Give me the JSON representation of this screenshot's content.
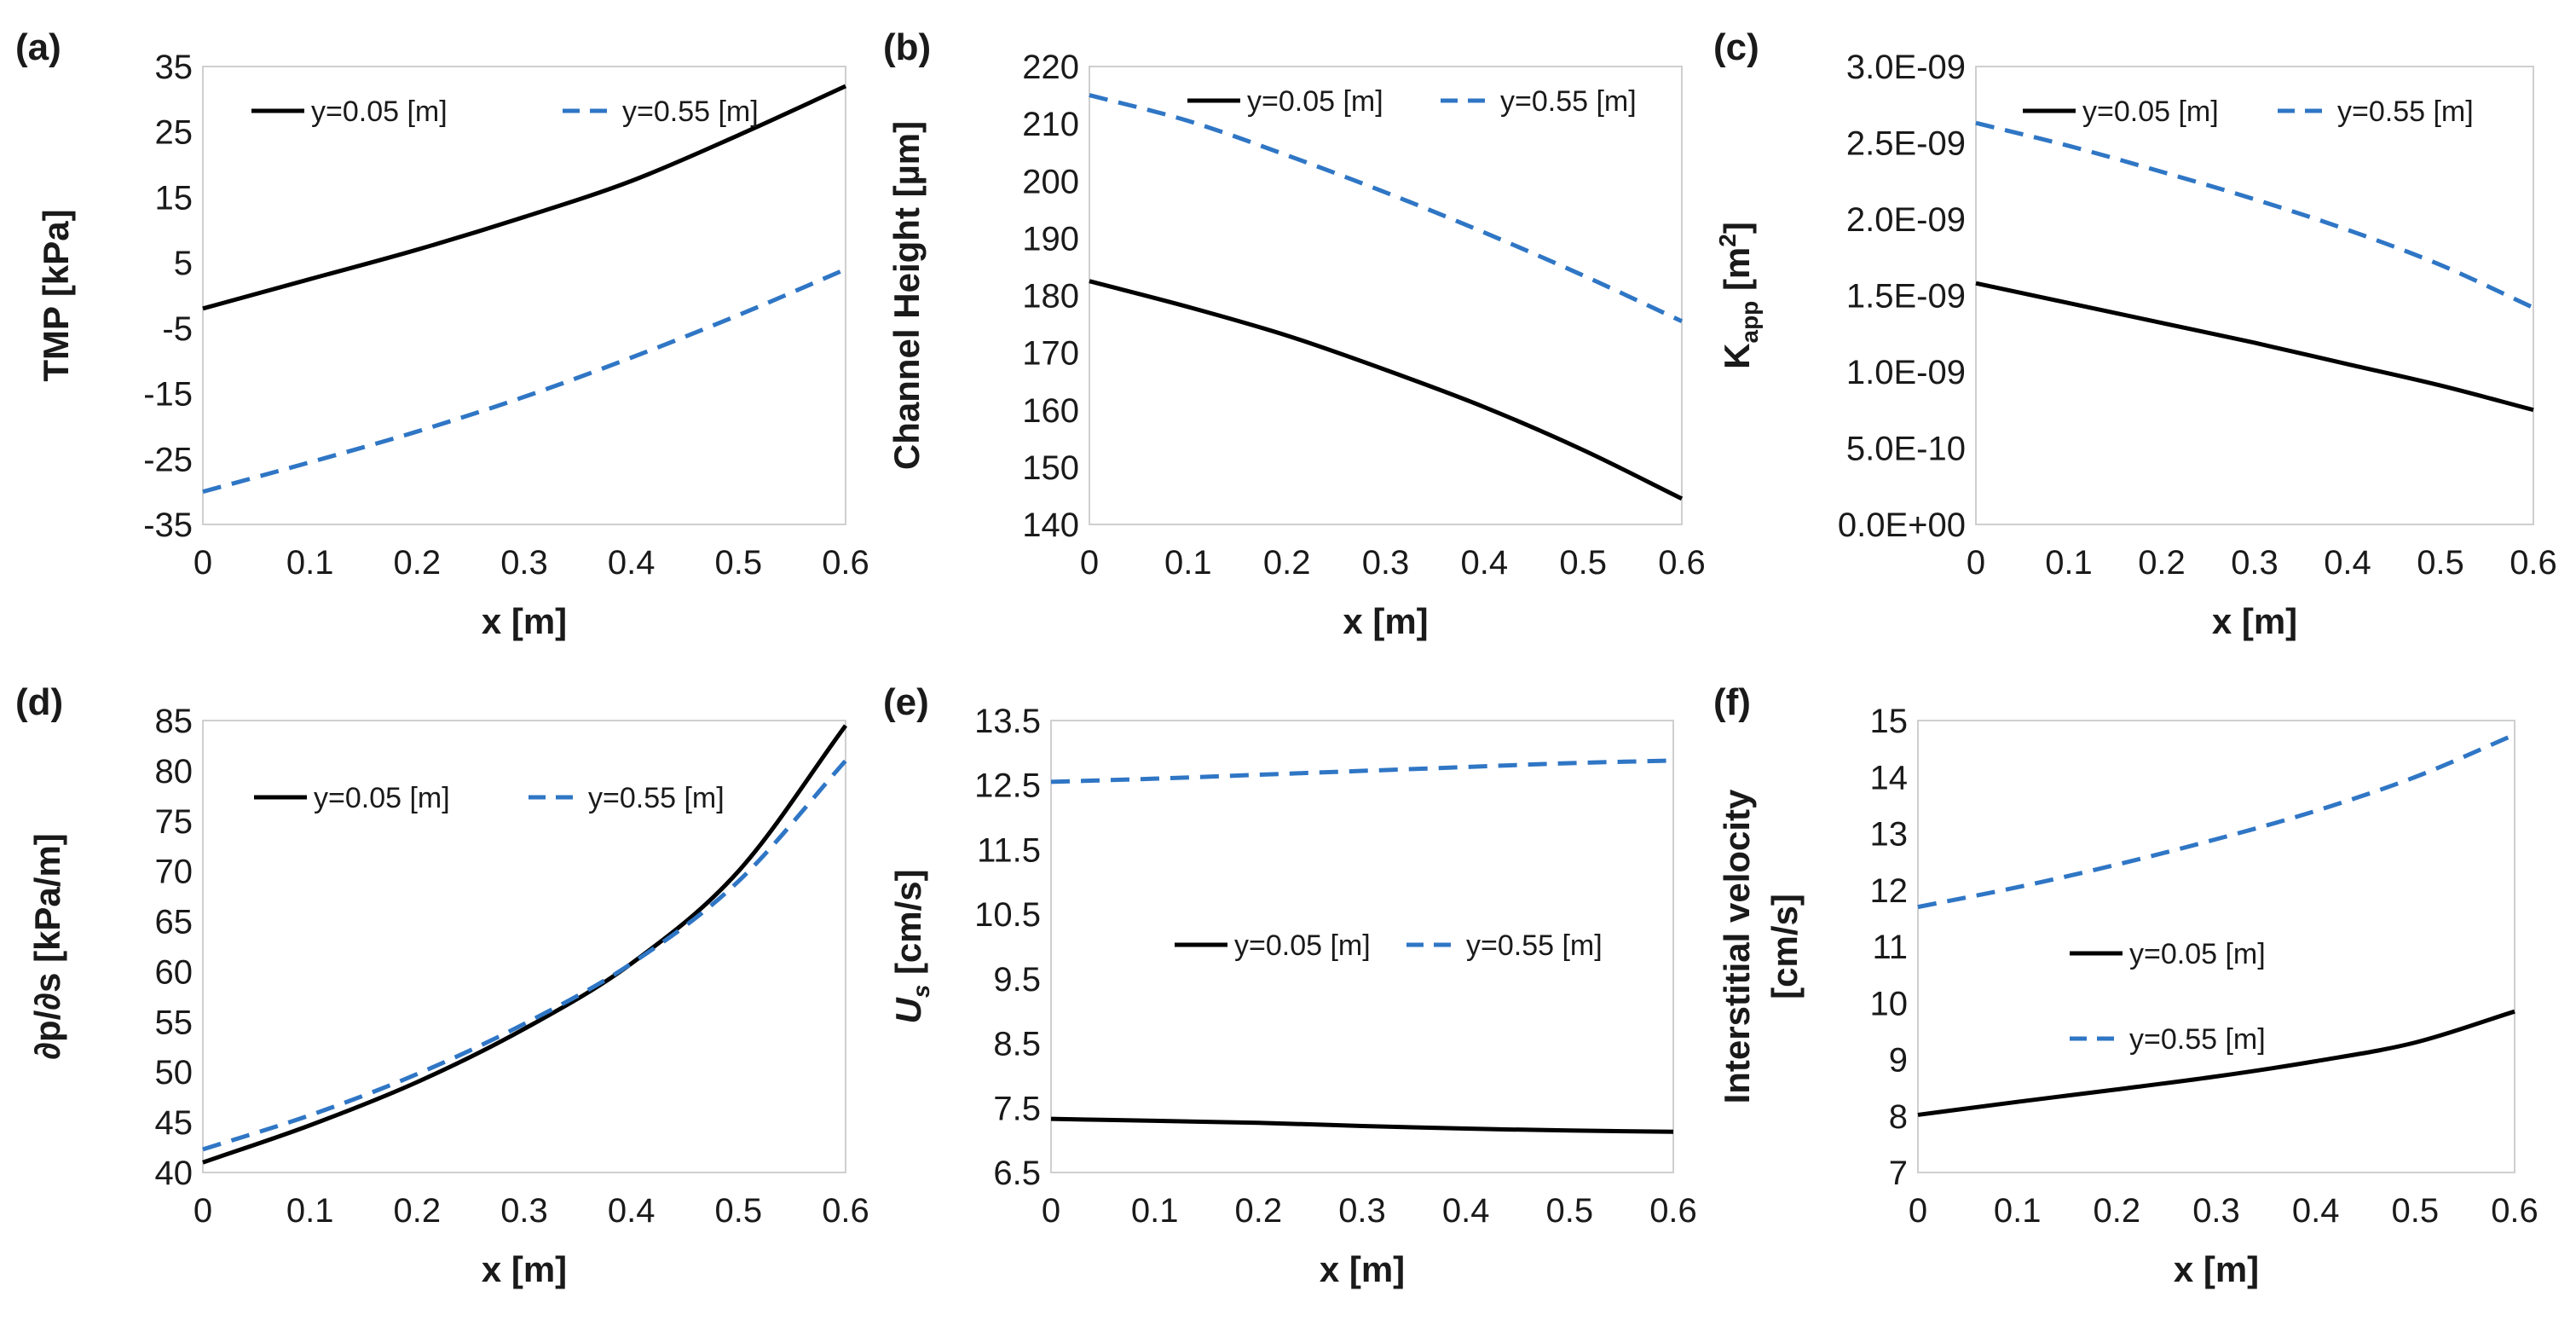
{
  "colors": {
    "solid": "#000000",
    "dashed": "#2F76C5",
    "frame": "#cfcfcf",
    "text": "#1a1a1a"
  },
  "chart_data": [
    {
      "id": "a",
      "type": "line",
      "panel_label": "(a)",
      "xlabel": "x [m]",
      "ylabel": "TMP [kPa]",
      "xlim": [
        0,
        0.6
      ],
      "ylim": [
        -35,
        35
      ],
      "xticks": [
        0,
        0.1,
        0.2,
        0.3,
        0.4,
        0.5,
        0.6
      ],
      "xtick_labels": [
        "0",
        "0.1",
        "0.2",
        "0.3",
        "0.4",
        "0.5",
        "0.6"
      ],
      "yticks": [
        -35,
        -25,
        -15,
        -5,
        5,
        15,
        25,
        35
      ],
      "ytick_labels": [
        "-35",
        "-25",
        "-15",
        "-5",
        "5",
        "15",
        "25",
        "35"
      ],
      "legend_position": "top",
      "series": [
        {
          "name": "y=0.05 [m]",
          "style": "solid",
          "x": [
            0,
            0.1,
            0.2,
            0.3,
            0.4,
            0.5,
            0.6
          ],
          "y": [
            -2,
            2.5,
            7,
            12,
            17.5,
            24.5,
            32
          ]
        },
        {
          "name": "y=0.55 [m]",
          "style": "dashed",
          "x": [
            0,
            0.1,
            0.2,
            0.3,
            0.4,
            0.5,
            0.6
          ],
          "y": [
            -30,
            -25.5,
            -20.8,
            -15.5,
            -9.5,
            -3,
            4
          ]
        }
      ]
    },
    {
      "id": "b",
      "type": "line",
      "panel_label": "(b)",
      "xlabel": "x [m]",
      "ylabel": "Channel Height [µm]",
      "xlim": [
        0,
        0.6
      ],
      "ylim": [
        140,
        220
      ],
      "xticks": [
        0,
        0.1,
        0.2,
        0.3,
        0.4,
        0.5,
        0.6
      ],
      "xtick_labels": [
        "0",
        "0.1",
        "0.2",
        "0.3",
        "0.4",
        "0.5",
        "0.6"
      ],
      "yticks": [
        140,
        150,
        160,
        170,
        180,
        190,
        200,
        210,
        220
      ],
      "ytick_labels": [
        "140",
        "150",
        "160",
        "170",
        "180",
        "190",
        "200",
        "210",
        "220"
      ],
      "legend_position": "top",
      "series": [
        {
          "name": "y=0.05 [m]",
          "style": "solid",
          "x": [
            0,
            0.1,
            0.2,
            0.3,
            0.4,
            0.5,
            0.6
          ],
          "y": [
            182.5,
            178,
            173,
            167,
            160.5,
            153,
            144.5
          ]
        },
        {
          "name": "y=0.55 [m]",
          "style": "dashed",
          "x": [
            0,
            0.1,
            0.2,
            0.3,
            0.4,
            0.5,
            0.6
          ],
          "y": [
            215,
            210.5,
            204.5,
            198,
            191,
            183.5,
            175.5
          ]
        }
      ]
    },
    {
      "id": "c",
      "type": "line",
      "panel_label": "(c)",
      "xlabel": "x [m]",
      "ylabel_main": "K",
      "ylabel_sub": "app",
      "ylabel_unit": " [m",
      "ylabel_sup": "2",
      "ylabel_end": "]",
      "xlim": [
        0,
        0.6
      ],
      "ylim": [
        0,
        3e-09
      ],
      "xticks": [
        0,
        0.1,
        0.2,
        0.3,
        0.4,
        0.5,
        0.6
      ],
      "xtick_labels": [
        "0",
        "0.1",
        "0.2",
        "0.3",
        "0.4",
        "0.5",
        "0.6"
      ],
      "yticks": [
        0,
        5e-10,
        1e-09,
        1.5e-09,
        2e-09,
        2.5e-09,
        3e-09
      ],
      "ytick_labels": [
        "0.0E+00",
        "5.0E-10",
        "1.0E-09",
        "1.5E-09",
        "2.0E-09",
        "2.5E-09",
        "3.0E-09"
      ],
      "legend_position": "top",
      "series": [
        {
          "name": "y=0.05 [m]",
          "style": "solid",
          "x": [
            0,
            0.1,
            0.2,
            0.3,
            0.4,
            0.5,
            0.6
          ],
          "y": [
            1.58e-09,
            1.45e-09,
            1.32e-09,
            1.19e-09,
            1.05e-09,
            9.1e-10,
            7.5e-10
          ]
        },
        {
          "name": "y=0.55 [m]",
          "style": "dashed",
          "x": [
            0,
            0.1,
            0.2,
            0.3,
            0.4,
            0.5,
            0.6
          ],
          "y": [
            2.63e-09,
            2.48e-09,
            2.31e-09,
            2.13e-09,
            1.93e-09,
            1.7e-09,
            1.42e-09
          ]
        }
      ]
    },
    {
      "id": "d",
      "type": "line",
      "panel_label": "(d)",
      "xlabel": "x [m]",
      "ylabel": "∂p/∂s [kPa/m]",
      "xlim": [
        0,
        0.6
      ],
      "ylim": [
        40,
        85
      ],
      "xticks": [
        0,
        0.1,
        0.2,
        0.3,
        0.4,
        0.5,
        0.6
      ],
      "xtick_labels": [
        "0",
        "0.1",
        "0.2",
        "0.3",
        "0.4",
        "0.5",
        "0.6"
      ],
      "yticks": [
        40,
        45,
        50,
        55,
        60,
        65,
        70,
        75,
        80,
        85
      ],
      "ytick_labels": [
        "40",
        "45",
        "50",
        "55",
        "60",
        "65",
        "70",
        "75",
        "80",
        "85"
      ],
      "legend_position": "upper-middle",
      "series": [
        {
          "name": "y=0.05 [m]",
          "style": "solid",
          "x": [
            0,
            0.1,
            0.2,
            0.3,
            0.4,
            0.5,
            0.6
          ],
          "y": [
            41,
            44.7,
            49,
            54.3,
            60.8,
            70,
            84.5
          ]
        },
        {
          "name": "y=0.55 [m]",
          "style": "dashed",
          "x": [
            0,
            0.1,
            0.2,
            0.3,
            0.4,
            0.5,
            0.6
          ],
          "y": [
            42.3,
            45.7,
            49.8,
            54.8,
            60.8,
            69,
            81
          ]
        }
      ]
    },
    {
      "id": "e",
      "type": "line",
      "panel_label": "(e)",
      "xlabel": "x [m]",
      "ylabel_main": "U",
      "ylabel_sub": "s",
      "ylabel_unit": " [cm/s]",
      "xlim": [
        0,
        0.6
      ],
      "ylim": [
        6.5,
        13.5
      ],
      "xticks": [
        0,
        0.1,
        0.2,
        0.3,
        0.4,
        0.5,
        0.6
      ],
      "xtick_labels": [
        "0",
        "0.1",
        "0.2",
        "0.3",
        "0.4",
        "0.5",
        "0.6"
      ],
      "yticks": [
        6.5,
        7.5,
        8.5,
        9.5,
        10.5,
        11.5,
        12.5,
        13.5
      ],
      "ytick_labels": [
        "6.5",
        "7.5",
        "8.5",
        "9.5",
        "10.5",
        "11.5",
        "12.5",
        "13.5"
      ],
      "legend_position": "middle",
      "series": [
        {
          "name": "y=0.05 [m]",
          "style": "solid",
          "x": [
            0,
            0.1,
            0.2,
            0.3,
            0.4,
            0.5,
            0.6
          ],
          "y": [
            7.33,
            7.3,
            7.27,
            7.22,
            7.18,
            7.15,
            7.13
          ]
        },
        {
          "name": "y=0.55 [m]",
          "style": "dashed",
          "x": [
            0,
            0.1,
            0.2,
            0.3,
            0.4,
            0.5,
            0.6
          ],
          "y": [
            12.55,
            12.6,
            12.66,
            12.72,
            12.78,
            12.84,
            12.88
          ]
        }
      ]
    },
    {
      "id": "f",
      "type": "line",
      "panel_label": "(f)",
      "xlabel": "x [m]",
      "ylabel_line1": "Interstitial velocity",
      "ylabel_line2": "[cm/s]",
      "xlim": [
        0,
        0.6
      ],
      "ylim": [
        7,
        15
      ],
      "xticks": [
        0,
        0.1,
        0.2,
        0.3,
        0.4,
        0.5,
        0.6
      ],
      "xtick_labels": [
        "0",
        "0.1",
        "0.2",
        "0.3",
        "0.4",
        "0.5",
        "0.6"
      ],
      "yticks": [
        7,
        8,
        9,
        10,
        11,
        12,
        13,
        14,
        15
      ],
      "ytick_labels": [
        "7",
        "8",
        "9",
        "10",
        "11",
        "12",
        "13",
        "14",
        "15"
      ],
      "legend_position": "middle-stacked",
      "series": [
        {
          "name": "y=0.05 [m]",
          "style": "solid",
          "x": [
            0,
            0.1,
            0.2,
            0.3,
            0.4,
            0.5,
            0.6
          ],
          "y": [
            8.02,
            8.25,
            8.47,
            8.7,
            8.97,
            9.3,
            9.85
          ]
        },
        {
          "name": "y=0.55 [m]",
          "style": "dashed",
          "x": [
            0,
            0.1,
            0.2,
            0.3,
            0.4,
            0.5,
            0.6
          ],
          "y": [
            11.7,
            12.05,
            12.45,
            12.9,
            13.4,
            14,
            14.75
          ]
        }
      ]
    }
  ]
}
